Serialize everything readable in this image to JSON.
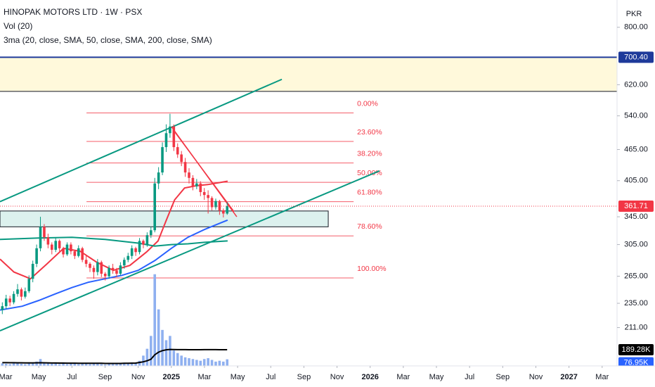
{
  "chart_data": {
    "type": "candlestick",
    "title": "HINOPAK MOTORS LTD · 1W · PSX",
    "indicator_labels": [
      "Vol (20)",
      "3ma (20, close, SMA, 50, close, SMA, 200, close, SMA)"
    ],
    "currency": "PKR",
    "log_scale": true,
    "ylim": [
      178,
      903
    ],
    "yticks": [
      {
        "value": 800,
        "label": "800.00"
      },
      {
        "value": 620,
        "label": "620.00"
      },
      {
        "value": 540,
        "label": "540.00"
      },
      {
        "value": 465,
        "label": "465.00"
      },
      {
        "value": 405,
        "label": "405.00"
      },
      {
        "value": 345,
        "label": "345.00"
      },
      {
        "value": 305,
        "label": "305.00"
      },
      {
        "value": 265,
        "label": "265.00"
      },
      {
        "value": 235,
        "label": "235.00"
      },
      {
        "value": 211,
        "label": "211.00"
      }
    ],
    "xlim": [
      -0.34,
      36.9
    ],
    "xticks": [
      {
        "value": 0,
        "label": "Mar"
      },
      {
        "value": 2,
        "label": "May"
      },
      {
        "value": 4,
        "label": "Jul"
      },
      {
        "value": 6,
        "label": "Sep"
      },
      {
        "value": 8,
        "label": "Nov"
      },
      {
        "value": 10,
        "label": "2025"
      },
      {
        "value": 12,
        "label": "Mar"
      },
      {
        "value": 14,
        "label": "May"
      },
      {
        "value": 16,
        "label": "Jul"
      },
      {
        "value": 18,
        "label": "Sep"
      },
      {
        "value": 20,
        "label": "Nov"
      },
      {
        "value": 22,
        "label": "2026"
      },
      {
        "value": 24,
        "label": "Mar"
      },
      {
        "value": 26,
        "label": "May"
      },
      {
        "value": 28,
        "label": "Jul"
      },
      {
        "value": 30,
        "label": "Sep"
      },
      {
        "value": 32,
        "label": "Nov"
      },
      {
        "value": 34,
        "label": "2027"
      },
      {
        "value": 36,
        "label": "Mar"
      }
    ],
    "up_color": "#089981",
    "down_color": "#f23645",
    "x": [
      -0.2,
      0.03,
      0.26,
      0.49,
      0.72,
      0.95,
      1.18,
      1.41,
      1.64,
      1.87,
      2.1,
      2.33,
      2.56,
      2.79,
      3.02,
      3.25,
      3.48,
      3.71,
      3.94,
      4.17,
      4.4,
      4.63,
      4.86,
      5.09,
      5.32,
      5.55,
      5.78,
      6.01,
      6.24,
      6.47,
      6.7,
      6.93,
      7.16,
      7.39,
      7.62,
      7.85,
      8.08,
      8.31,
      8.54,
      8.77,
      9.0,
      9.23,
      9.46,
      9.69,
      9.92,
      10.15,
      10.38,
      10.61,
      10.84,
      11.07,
      11.3,
      11.53,
      11.76,
      11.99,
      12.22,
      12.45,
      12.68,
      12.91,
      13.14,
      13.37
    ],
    "open": [
      228,
      232,
      240,
      236,
      245,
      250,
      242,
      248,
      262,
      280,
      300,
      330,
      315,
      305,
      298,
      310,
      300,
      292,
      305,
      296,
      290,
      300,
      285,
      280,
      275,
      270,
      282,
      268,
      265,
      275,
      272,
      268,
      278,
      285,
      290,
      300,
      295,
      310,
      305,
      318,
      325,
      400,
      420,
      470,
      500,
      515,
      470,
      455,
      440,
      420,
      410,
      395,
      400,
      385,
      380,
      375,
      360,
      370,
      355,
      350
    ],
    "high": [
      236,
      244,
      243,
      248,
      256,
      252,
      252,
      266,
      284,
      305,
      345,
      334,
      320,
      308,
      314,
      312,
      302,
      308,
      308,
      298,
      304,
      302,
      290,
      282,
      278,
      286,
      284,
      270,
      278,
      280,
      275,
      282,
      288,
      294,
      304,
      302,
      314,
      312,
      322,
      330,
      410,
      430,
      480,
      520,
      545,
      520,
      478,
      462,
      448,
      428,
      415,
      408,
      404,
      392,
      388,
      378,
      374,
      372,
      358,
      368
    ],
    "low": [
      224,
      229,
      232,
      234,
      242,
      238,
      240,
      246,
      258,
      276,
      296,
      310,
      300,
      292,
      295,
      296,
      288,
      290,
      292,
      286,
      288,
      282,
      276,
      270,
      262,
      266,
      264,
      260,
      262,
      268,
      264,
      266,
      274,
      282,
      286,
      290,
      292,
      300,
      302,
      314,
      322,
      390,
      415,
      460,
      490,
      462,
      448,
      432,
      412,
      400,
      388,
      390,
      378,
      372,
      350,
      355,
      356,
      348,
      344,
      348
    ],
    "close": [
      232,
      240,
      236,
      245,
      250,
      242,
      248,
      262,
      280,
      300,
      330,
      315,
      305,
      298,
      310,
      300,
      292,
      305,
      296,
      290,
      300,
      285,
      280,
      275,
      270,
      282,
      268,
      265,
      275,
      272,
      268,
      278,
      285,
      290,
      300,
      295,
      310,
      305,
      318,
      325,
      400,
      420,
      470,
      500,
      515,
      470,
      455,
      440,
      420,
      410,
      395,
      400,
      385,
      380,
      375,
      360,
      370,
      355,
      350,
      361.71
    ],
    "last_price": 361.71,
    "moving_averages": [
      {
        "color": "#f23645",
        "x": [
          -0.34,
          0.5,
          1.5,
          2.5,
          3.5,
          4.5,
          5.5,
          6.5,
          7.5,
          8.5,
          9.2,
          9.7,
          10.2,
          10.8,
          11.5,
          12.2,
          13.0,
          13.4
        ],
        "values": [
          286,
          270,
          262,
          280,
          300,
          296,
          282,
          272,
          278,
          295,
          310,
          340,
          372,
          392,
          396,
          398,
          402,
          404
        ]
      },
      {
        "color": "#2962ff",
        "x": [
          -0.34,
          1,
          2,
          3,
          4,
          5,
          6,
          7,
          8,
          9,
          10,
          11,
          12,
          13,
          13.4
        ],
        "values": [
          228,
          232,
          238,
          245,
          252,
          258,
          262,
          266,
          272,
          284,
          300,
          315,
          326,
          336,
          340
        ]
      },
      {
        "color": "#089981",
        "x": [
          -0.34,
          2,
          4,
          6,
          8,
          9,
          10,
          11,
          12,
          13.4
        ],
        "values": [
          312,
          314,
          315,
          312,
          307,
          303,
          305,
          306,
          308,
          310
        ]
      }
    ],
    "zone": {
      "top": 700.4,
      "bottom": 602,
      "color": "#fff9db"
    },
    "price_lines": [
      {
        "value": 700.4,
        "label": "700.40",
        "color": "#1e3a9a"
      },
      {
        "value": 602,
        "color": "#131722"
      }
    ],
    "box": {
      "x": [
        -0.34,
        19.47
      ],
      "y": [
        330,
        354
      ],
      "color": "#dcf1ee"
    },
    "channel": [
      {
        "color": "#089981",
        "x": [
          -0.34,
          16.67
        ],
        "y": [
          369,
          635
        ]
      },
      {
        "color": "#089981",
        "x": [
          -0.34,
          22.56
        ],
        "y": [
          208,
          423
        ]
      }
    ],
    "trendlines": [
      {
        "color": "#f23645",
        "x": [
          10.0,
          13.95
        ],
        "y": [
          515,
          345
        ]
      },
      {
        "color": "#f23645",
        "x": [
          10.18,
          13.78
        ],
        "y": [
          504,
          353
        ]
      }
    ],
    "fib_color": "#f23645",
    "fib_x": [
      4.88,
      21.0
    ],
    "fib_levels": [
      {
        "label": "0.00%",
        "value": 547
      },
      {
        "label": "23.60%",
        "value": 482
      },
      {
        "label": "38.20%",
        "value": 438
      },
      {
        "label": "50.00%",
        "value": 402
      },
      {
        "label": "61.80%",
        "value": 369
      },
      {
        "label": "78.60%",
        "value": 317
      },
      {
        "label": "100.00%",
        "value": 263
      }
    ],
    "volume_color": "#8fb0f0",
    "volume_ylim": [
      0,
      1150000
    ],
    "volume": [
      30000,
      25000,
      20000,
      35000,
      30000,
      25000,
      20000,
      30000,
      40000,
      50000,
      80000,
      40000,
      30000,
      25000,
      30000,
      20000,
      25000,
      20000,
      30000,
      25000,
      20000,
      25000,
      30000,
      20000,
      25000,
      30000,
      20000,
      15000,
      25000,
      20000,
      20000,
      25000,
      30000,
      35000,
      40000,
      30000,
      60000,
      120000,
      200000,
      350000,
      1070000,
      660000,
      420000,
      300000,
      350000,
      180000,
      150000,
      120000,
      100000,
      90000,
      80000,
      70000,
      60000,
      80000,
      90000,
      70000,
      50000,
      60000,
      50000,
      76950
    ],
    "volume_ma": [
      38000,
      38000,
      37000,
      37000,
      36000,
      36000,
      35000,
      35000,
      35000,
      36000,
      37000,
      36000,
      35000,
      34000,
      34000,
      33000,
      33000,
      32000,
      32000,
      32000,
      31000,
      31000,
      31000,
      30000,
      30000,
      30000,
      30000,
      29000,
      29000,
      29000,
      29000,
      29000,
      30000,
      31000,
      32000,
      33000,
      40000,
      48000,
      60000,
      78000,
      130000,
      160000,
      178000,
      188000,
      192000,
      191000,
      190000,
      190000,
      190000,
      189000,
      189000,
      189000,
      189000,
      189500,
      189500,
      189500,
      189500,
      189300,
      189300,
      189280
    ],
    "volume_labels": [
      {
        "value": 189280,
        "label": "189.28K"
      },
      {
        "value": 76950,
        "label": "76.95K"
      }
    ]
  }
}
